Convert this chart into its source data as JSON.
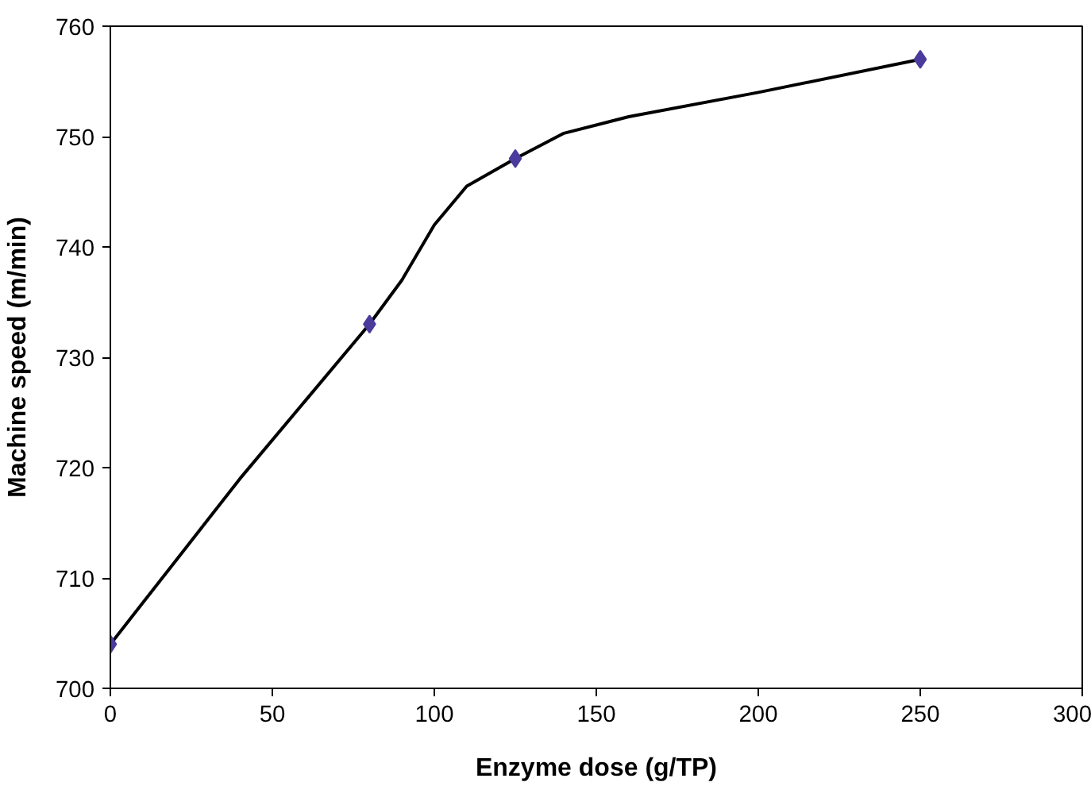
{
  "chart_data": {
    "type": "line",
    "xlabel": "Enzyme dose (g/TP)",
    "ylabel": "Machine speed (m/min)",
    "x": [
      0,
      80,
      125,
      250
    ],
    "series": [
      {
        "color": "#000000",
        "x": [
          0,
          20,
          40,
          60,
          80,
          90,
          100,
          110,
          125,
          140,
          160,
          200,
          250
        ],
        "values": [
          704,
          711.5,
          719,
          726,
          733,
          737,
          742,
          745.5,
          748,
          750.3,
          751.8,
          754,
          757
        ],
        "marker": "none"
      },
      {
        "type": "scatter",
        "color": "#4b3b9c",
        "values": [
          704,
          733,
          748,
          757
        ],
        "marker": "diamond"
      }
    ],
    "xlim": [
      0,
      300
    ],
    "ylim": [
      700,
      760
    ],
    "xticks": [
      0,
      50,
      100,
      150,
      200,
      250,
      300
    ],
    "yticks": [
      700,
      710,
      720,
      730,
      740,
      750,
      760
    ],
    "grid": false
  }
}
